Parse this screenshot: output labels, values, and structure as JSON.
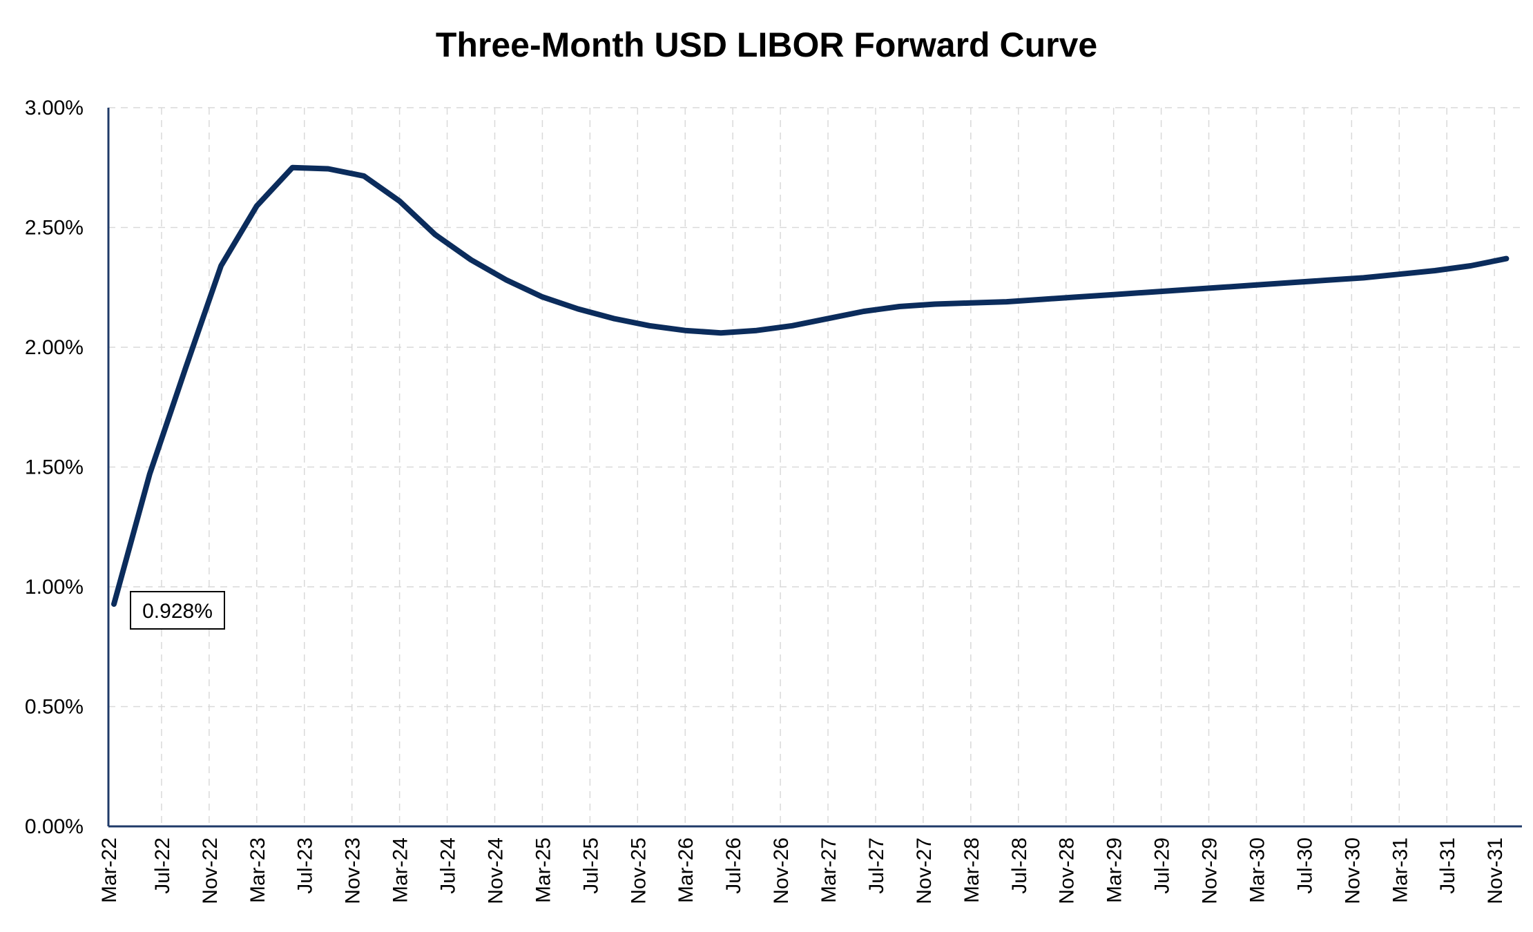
{
  "chart_data": {
    "type": "line",
    "title": "Three-Month USD LIBOR Forward Curve",
    "xlabel": "",
    "ylabel": "",
    "ylim": [
      0,
      0.03
    ],
    "y_ticks": [
      "0.00%",
      "0.50%",
      "1.00%",
      "1.50%",
      "2.00%",
      "2.50%",
      "3.00%"
    ],
    "y_tick_values": [
      0,
      0.005,
      0.01,
      0.015,
      0.02,
      0.025,
      0.03
    ],
    "x_tick_labels": [
      "Mar-22",
      "Jul-22",
      "Nov-22",
      "Mar-23",
      "Jul-23",
      "Nov-23",
      "Mar-24",
      "Jul-24",
      "Nov-24",
      "Mar-25",
      "Jul-25",
      "Nov-25",
      "Mar-26",
      "Jul-26",
      "Nov-26",
      "Mar-27",
      "Jul-27",
      "Nov-27",
      "Mar-28",
      "Jul-28",
      "Nov-28",
      "Mar-29",
      "Jul-29",
      "Nov-29",
      "Mar-30",
      "Jul-30",
      "Nov-30",
      "Mar-31",
      "Jul-31",
      "Nov-31"
    ],
    "grid": true,
    "series": [
      {
        "color": "#0b2c5c",
        "x": [
          "2022-03",
          "2022-06",
          "2022-09",
          "2022-12",
          "2023-03",
          "2023-06",
          "2023-09",
          "2023-12",
          "2024-03",
          "2024-06",
          "2024-09",
          "2024-12",
          "2025-03",
          "2025-06",
          "2025-09",
          "2025-12",
          "2026-03",
          "2026-06",
          "2026-09",
          "2026-12",
          "2027-03",
          "2027-06",
          "2027-09",
          "2027-12",
          "2028-03",
          "2028-06",
          "2028-09",
          "2028-12",
          "2029-03",
          "2029-06",
          "2029-09",
          "2029-12",
          "2030-03",
          "2030-06",
          "2030-09",
          "2030-12",
          "2031-03",
          "2031-06",
          "2031-09",
          "2031-12"
        ],
        "values": [
          0.00928,
          0.0147,
          0.0191,
          0.0234,
          0.0259,
          0.0275,
          0.02745,
          0.02715,
          0.0261,
          0.0247,
          0.02365,
          0.0228,
          0.0221,
          0.0216,
          0.0212,
          0.0209,
          0.0207,
          0.0206,
          0.0207,
          0.0209,
          0.0212,
          0.0215,
          0.0217,
          0.0218,
          0.02185,
          0.0219,
          0.022,
          0.0221,
          0.0222,
          0.0223,
          0.0224,
          0.0225,
          0.0226,
          0.0227,
          0.0228,
          0.0229,
          0.02305,
          0.0232,
          0.0234,
          0.0237
        ]
      }
    ],
    "data_labels": [
      {
        "series_index": 0,
        "point_index": 0,
        "text": "0.928%"
      }
    ]
  }
}
